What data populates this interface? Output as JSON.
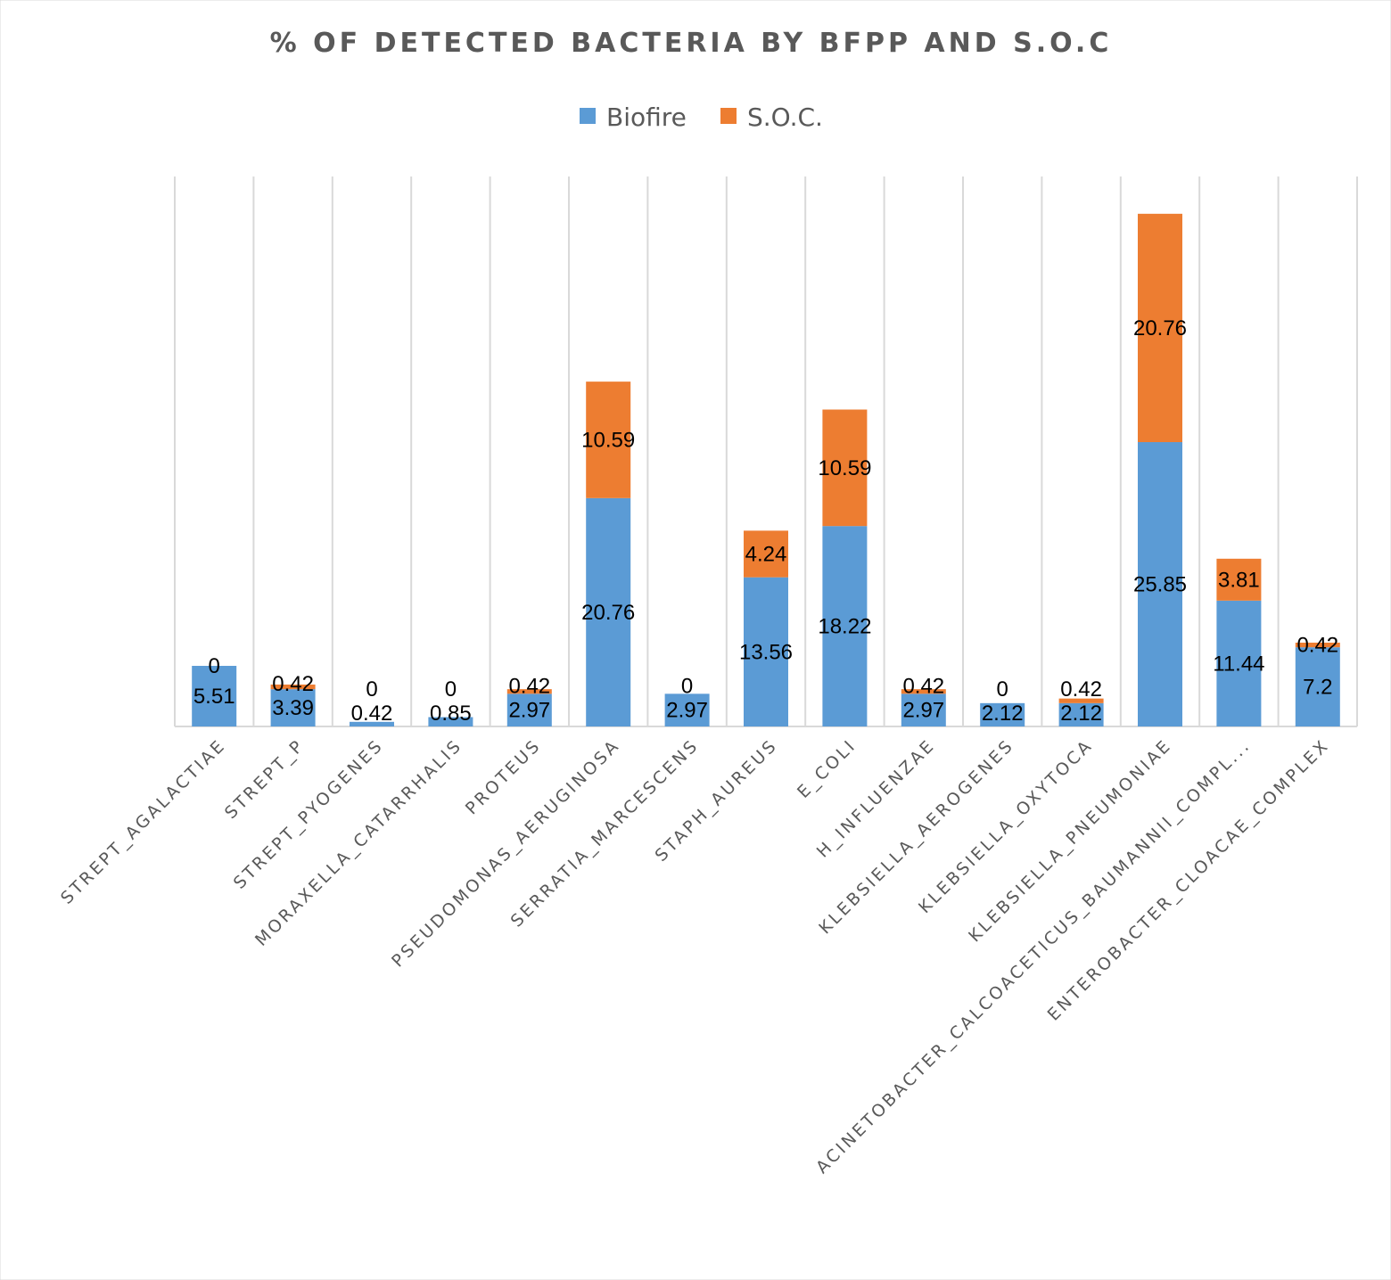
{
  "chart_data": {
    "type": "bar",
    "stacked": true,
    "title": "% OF DETECTED BACTERIA BY BFPP AND S.O.C",
    "xlabel": "",
    "ylabel": "",
    "ylim": [
      0,
      50
    ],
    "grid": "vertical",
    "legend_position": "top",
    "categories": [
      "STREPT_AGALACTIAE",
      "STREPT_P",
      "STREPT_PYOGENES",
      "MORAXELLA_CATARRHALIS",
      "PROTEUS",
      "PSEUDOMONAS_AERUGINOSA",
      "SERRATIA_MARCESCENS",
      "STAPH_AUREUS",
      "E_COLI",
      "H_INFLUENZAE",
      "KLEBSIELLA_AEROGENES",
      "KLEBSIELLA_OXYTOCA",
      "KLEBSIELLA_PNEUMONIAE",
      "ACINETOBACTER_CALCOACETICUS_BAUMANNII_COMPL...",
      "ENTEROBACTER_CLOACAE_COMPLEX"
    ],
    "series": [
      {
        "name": "Biofire",
        "color": "#5B9BD5",
        "values": [
          5.51,
          3.39,
          0.42,
          0.85,
          2.97,
          20.76,
          2.97,
          13.56,
          18.22,
          2.97,
          2.12,
          2.12,
          25.85,
          11.44,
          7.2
        ]
      },
      {
        "name": "S.O.C.",
        "color": "#ED7D31",
        "values": [
          0,
          0.42,
          0,
          0,
          0.42,
          10.59,
          0,
          4.24,
          10.59,
          0.42,
          0,
          0.42,
          20.76,
          3.81,
          0.42
        ]
      }
    ]
  }
}
